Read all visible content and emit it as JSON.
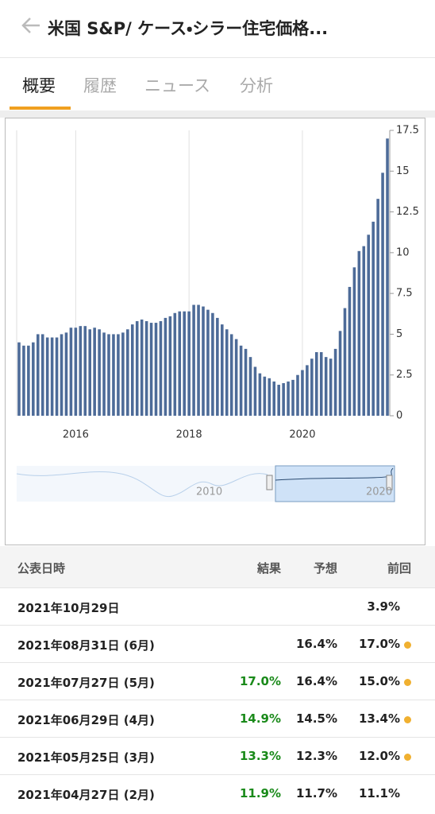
{
  "header": {
    "title": "米国 S&P/ ケース・シラー住宅価格..."
  },
  "tabs": [
    "概要",
    "履歴",
    "ニュース",
    "分析"
  ],
  "chart_data": {
    "type": "bar",
    "color": "#4d6b98",
    "grid": "x",
    "categories": [
      null,
      null,
      null,
      null,
      null,
      null,
      null,
      null,
      null,
      null,
      null,
      null,
      "2016",
      null,
      null,
      null,
      null,
      null,
      null,
      null,
      null,
      null,
      null,
      null,
      null,
      null,
      null,
      null,
      null,
      null,
      null,
      null,
      null,
      null,
      null,
      null,
      "2018",
      null,
      null,
      null,
      null,
      null,
      null,
      null,
      null,
      null,
      null,
      null,
      null,
      null,
      null,
      null,
      null,
      null,
      null,
      null,
      null,
      null,
      null,
      null,
      "2020",
      null,
      null,
      null,
      null,
      null,
      null,
      null,
      null,
      null,
      null,
      null,
      null,
      null,
      null,
      null,
      null,
      null,
      null
    ],
    "values": [
      4.5,
      4.3,
      4.3,
      4.5,
      5.0,
      5.0,
      4.8,
      4.8,
      4.8,
      5.0,
      5.1,
      5.4,
      5.4,
      5.5,
      5.5,
      5.3,
      5.4,
      5.3,
      5.1,
      5.0,
      5.0,
      5.0,
      5.1,
      5.3,
      5.6,
      5.8,
      5.9,
      5.8,
      5.7,
      5.7,
      5.8,
      6.0,
      6.1,
      6.3,
      6.4,
      6.4,
      6.4,
      6.8,
      6.8,
      6.7,
      6.5,
      6.3,
      6.0,
      5.6,
      5.3,
      5.0,
      4.7,
      4.3,
      4.1,
      3.6,
      3.0,
      2.6,
      2.4,
      2.3,
      2.1,
      1.9,
      2.0,
      2.1,
      2.2,
      2.5,
      2.8,
      3.1,
      3.5,
      3.9,
      3.9,
      3.6,
      3.5,
      4.1,
      5.2,
      6.6,
      7.9,
      9.1,
      10.1,
      10.4,
      11.1,
      11.9,
      13.3,
      14.9,
      17.0
    ],
    "ylim": [
      0,
      17.5
    ],
    "yticks": [
      0,
      2.5,
      5,
      7.5,
      10,
      12.5,
      15,
      17.5
    ],
    "navigator_labels": [
      "2010",
      "2020"
    ]
  },
  "table": {
    "headers": [
      "公表日時",
      "結果",
      "予想",
      "前回"
    ],
    "rows": [
      [
        "2021年10月29日",
        null,
        null,
        "3.9%"
      ],
      [
        "2021年08月31日 (6月)",
        null,
        "16.4%",
        "17.0%"
      ],
      [
        "2021年07月27日 (5月)",
        "17.0%",
        "16.4%",
        "15.0%"
      ],
      [
        "2021年06月29日 (4月)",
        "14.9%",
        "14.5%",
        "13.4%"
      ],
      [
        "2021年05月25日 (3月)",
        "13.3%",
        "12.3%",
        "12.0%"
      ],
      [
        "2021年04月27日 (2月)",
        "11.9%",
        "11.7%",
        "11.1%"
      ]
    ]
  }
}
